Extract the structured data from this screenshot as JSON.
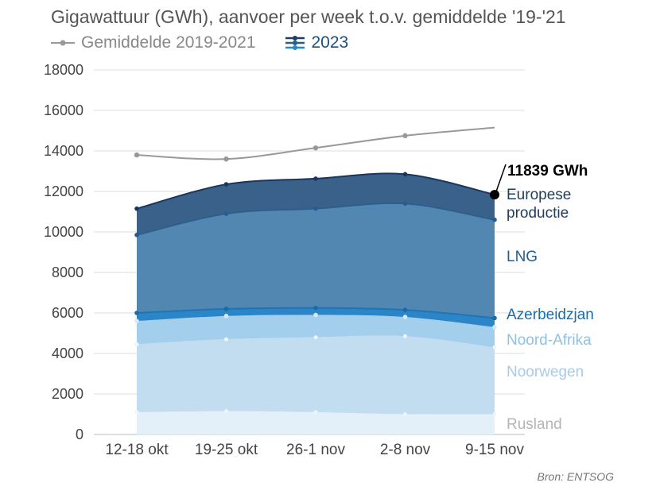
{
  "title": "Gigawattuur (GWh), aanvoer per week t.o.v. gemiddelde '19-'21",
  "source": "Bron: ENTSOG",
  "chart_data": {
    "type": "area",
    "categories": [
      "12-18 okt",
      "19-25 okt",
      "26-1 nov",
      "2-8 nov",
      "9-15 nov"
    ],
    "ylim": [
      0,
      18000
    ],
    "yticks": [
      "0",
      "2000",
      "4000",
      "6000",
      "8000",
      "10000",
      "12000",
      "14000",
      "16000",
      "18000"
    ],
    "stacked": true,
    "series": [
      {
        "name": "Rusland",
        "values": [
          1100,
          1150,
          1100,
          1000,
          1000
        ],
        "color": "#e3eff9",
        "label_color": "#b5b5b5"
      },
      {
        "name": "Noorwegen",
        "values": [
          3350,
          3550,
          3700,
          3850,
          3300
        ],
        "color": "#c3ddf0",
        "label_color": "#a9cbe6"
      },
      {
        "name": "Noord-Afrika",
        "values": [
          1150,
          1150,
          1100,
          950,
          1000
        ],
        "color": "#a4cfec",
        "label_color": "#8fc1e3"
      },
      {
        "name": "Azerbeidzjan",
        "values": [
          400,
          350,
          350,
          350,
          450
        ],
        "color": "#2b85c7",
        "label_color": "#1a6ba8"
      },
      {
        "name": "LNG",
        "values": [
          3850,
          4700,
          4900,
          5250,
          4850
        ],
        "color": "#5287b2",
        "label_color": "#245d8f"
      },
      {
        "name": "Europese productie",
        "values": [
          1300,
          1450,
          1480,
          1450,
          1239
        ],
        "color": "#3a6189",
        "label_color": "#1f3d5c"
      }
    ],
    "average": {
      "name": "Gemiddelde 2019-2021",
      "values": [
        13800,
        13600,
        14150,
        14750,
        15150
      ],
      "color": "#999999"
    },
    "legend": [
      {
        "name": "Gemiddelde 2019-2021",
        "icon": "line-dot-icon"
      },
      {
        "name": "2023",
        "icon": "stacked-lines-icon"
      }
    ],
    "annotation": {
      "text": "11839 GWh",
      "value": 11839,
      "category": "9-15 nov"
    },
    "grid": true,
    "legend_position": "top-left"
  },
  "colors": {
    "axis_text": "#444444",
    "grid": "#dddddd",
    "average": "#999999",
    "total_line": "#1b365d"
  }
}
